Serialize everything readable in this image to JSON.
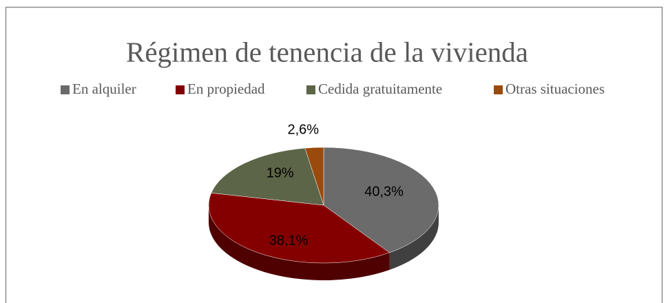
{
  "chart_data": {
    "type": "pie",
    "title": "Régimen de tenencia de la vivienda",
    "categories": [
      "En alquiler",
      "En propiedad",
      "Cedida gratuitamente",
      "Otras situaciones"
    ],
    "values": [
      40.3,
      38.1,
      19,
      2.6
    ],
    "value_labels": [
      "40,3%",
      "38,1%",
      "19%",
      "2,6%"
    ],
    "colors": [
      "#6b6b6b",
      "#840000",
      "#5d6548",
      "#9a4a0c"
    ],
    "legend": "top"
  }
}
